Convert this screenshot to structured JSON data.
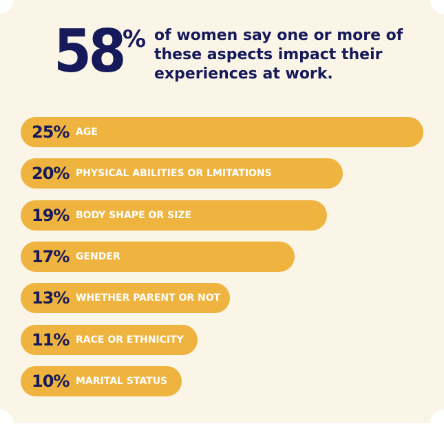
{
  "header": {
    "big_number": "58",
    "big_percent_sign": "%",
    "headline": "of women say one or more of these aspects impact their experiences at work."
  },
  "colors": {
    "background": "#faf5e6",
    "bar": "#efb43f",
    "navy": "#16195a",
    "label": "#ffffff"
  },
  "chart_data": {
    "type": "bar",
    "orientation": "horizontal",
    "categories": [
      "AGE",
      "PHYSICAL ABILITIES OR LMITATIONS",
      "BODY SHAPE OR SIZE",
      "GENDER",
      "WHETHER PARENT OR NOT",
      "RACE OR ETHNICITY",
      "MARITAL STATUS"
    ],
    "values": [
      25,
      20,
      19,
      17,
      13,
      11,
      10
    ],
    "value_labels": [
      "25%",
      "20%",
      "19%",
      "17%",
      "13%",
      "11%",
      "10%"
    ],
    "unit": "%",
    "xlim": [
      0,
      25
    ]
  }
}
